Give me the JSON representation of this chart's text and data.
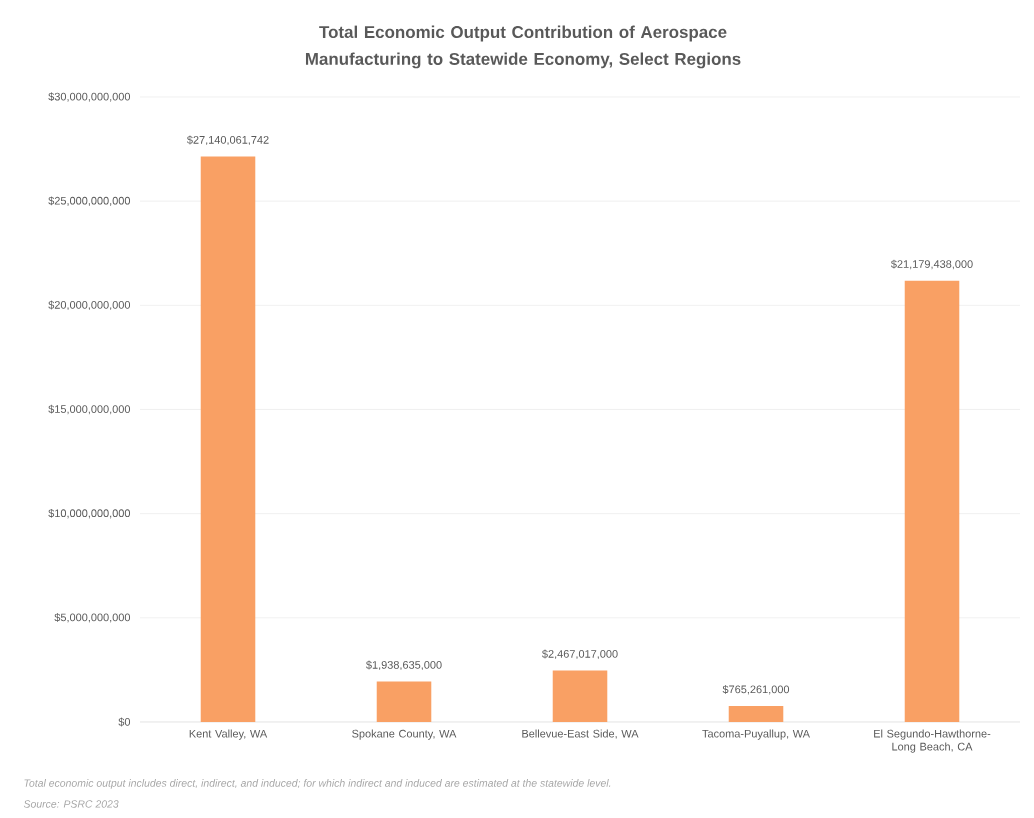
{
  "chart_data": {
    "type": "bar",
    "title": "Total Economic Output Contribution of Aerospace Manufacturing to Statewide Economy, Select Regions",
    "categories": [
      "Kent Valley, WA",
      "Spokane County, WA",
      "Bellevue-East Side, WA",
      "Tacoma-Puyallup, WA",
      "El Segundo-Hawthorne-Long Beach, CA"
    ],
    "values": [
      27140061742,
      1938635000,
      2467017000,
      765261000,
      21179438000
    ],
    "value_labels": [
      "$27,140,061,742",
      "$1,938,635,000",
      "$2,467,017,000",
      "$765,261,000",
      "$21,179,438,000"
    ],
    "color": "#f9a064",
    "ylim": [
      0,
      30000000000
    ],
    "yticks": [
      {
        "value": 0,
        "label": "$0"
      },
      {
        "value": 5000000000,
        "label": "$5,000,000,000"
      },
      {
        "value": 10000000000,
        "label": "$10,000,000,000"
      },
      {
        "value": 15000000000,
        "label": "$15,000,000,000"
      },
      {
        "value": 20000000000,
        "label": "$20,000,000,000"
      },
      {
        "value": 25000000000,
        "label": "$25,000,000,000"
      },
      {
        "value": 30000000000,
        "label": "$30,000,000,000"
      }
    ],
    "grid": "y",
    "annotations": [
      "Total economic output includes direct, indirect, and induced; for which indirect and induced are estimated at the statewide level.",
      "Source:  PSRC 2023"
    ]
  }
}
